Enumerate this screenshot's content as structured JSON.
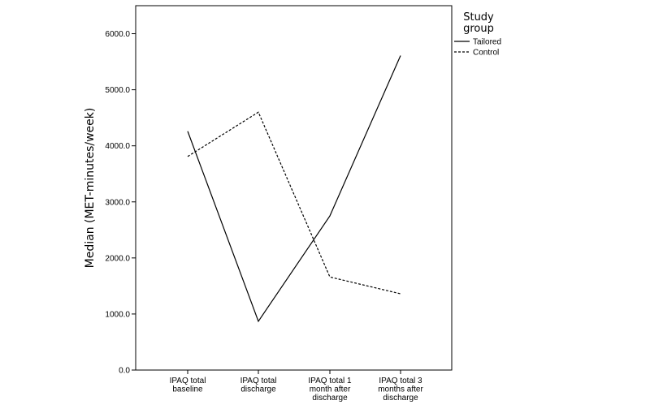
{
  "chart_data": {
    "type": "line",
    "categories": [
      [
        "IPAQ total",
        "baseline"
      ],
      [
        "IPAQ total",
        "discharge"
      ],
      [
        "IPAQ total 1",
        "month after",
        "discharge"
      ],
      [
        "IPAQ total 3",
        "months after",
        "discharge"
      ]
    ],
    "ylabel": "Median (MET-minutes/week)",
    "xlabel": "",
    "ylim": [
      0,
      6500
    ],
    "yticks": [
      0,
      1000,
      2000,
      3000,
      4000,
      5000,
      6000
    ],
    "ytick_labels": [
      "0.0",
      "1000.0",
      "2000.0",
      "3000.0",
      "4000.0",
      "5000.0",
      "6000.0"
    ],
    "legend": {
      "title_lines": [
        "Study",
        "group"
      ],
      "placement": "top-right outside"
    },
    "series": [
      {
        "name": "Tailored",
        "style": "solid",
        "color": "#000000",
        "values": [
          4260,
          870,
          2750,
          5610
        ]
      },
      {
        "name": "Control",
        "style": "dashed",
        "color": "#000000",
        "values": [
          3810,
          4600,
          1660,
          1360
        ]
      }
    ],
    "grid": false
  }
}
